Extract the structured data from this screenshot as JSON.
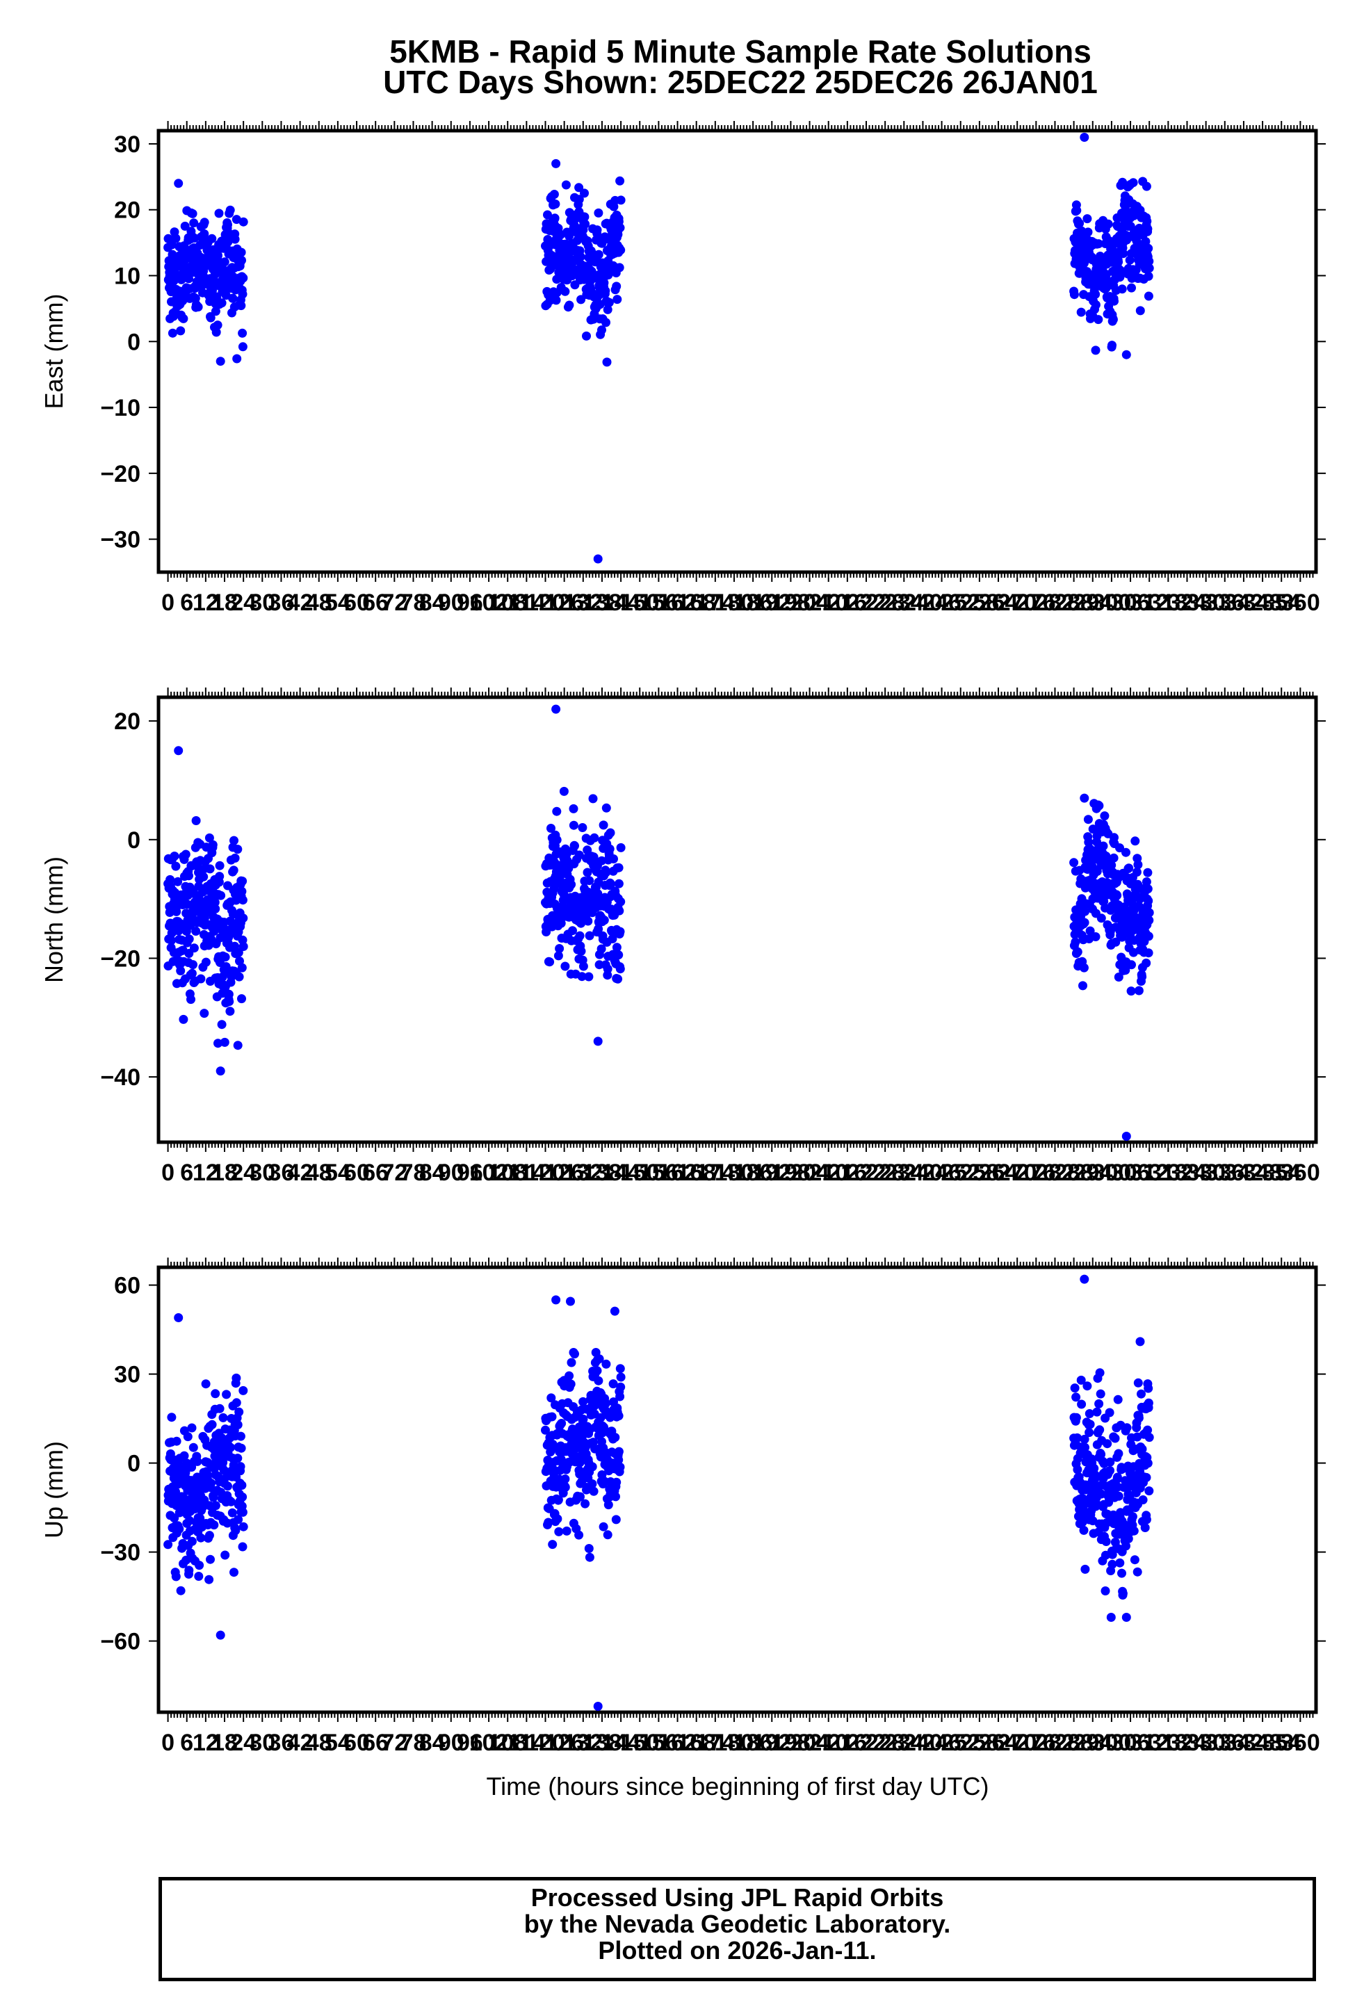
{
  "title": {
    "line1": "5KMB - Rapid 5 Minute Sample Rate Solutions",
    "line2": "UTC Days Shown:  25DEC22 25DEC26 26JAN01"
  },
  "xlabel": "Time (hours since beginning of first day UTC)",
  "footer": {
    "line1": "Processed Using JPL Rapid Orbits",
    "line2": "by the Nevada Geodetic Laboratory.",
    "line3": "Plotted on 2026-Jan-11."
  },
  "colors": {
    "points": "#0000ff",
    "axes": "#000000"
  },
  "chart_data": [
    {
      "type": "scatter",
      "ylabel": "East (mm)",
      "xlim": [
        -3,
        365
      ],
      "ylim": [
        -35,
        32
      ],
      "x_ticks": [
        0,
        6,
        12,
        18,
        24,
        30,
        36,
        42,
        48,
        54,
        60,
        66,
        72,
        78,
        84,
        90,
        96,
        102,
        108,
        114,
        120,
        126,
        132,
        138,
        144,
        150,
        156,
        162,
        168,
        174,
        180,
        186,
        192,
        198,
        204,
        210,
        216,
        222,
        228,
        234,
        240,
        246,
        252,
        258,
        264,
        270,
        276,
        282,
        288,
        294,
        300,
        306,
        312,
        318,
        324,
        330,
        336,
        342,
        348,
        354,
        360
      ],
      "x_tick_labels": [
        "0",
        "6",
        "12",
        "18",
        "24",
        "30",
        "36",
        "42",
        "48",
        "54",
        "60",
        "66",
        "72",
        "78",
        "84",
        "90",
        "96",
        "102",
        "108",
        "114",
        "120",
        "126",
        "132",
        "138",
        "144",
        "150",
        "156",
        "162",
        "168",
        "174",
        "180",
        "186",
        "192",
        "198",
        "204",
        "210",
        "216",
        "222",
        "228",
        "234",
        "240",
        "246",
        "252",
        "258",
        "264",
        "270",
        "276",
        "282",
        "288",
        "294",
        "300",
        "306",
        "312",
        "318",
        "324",
        "330",
        "336",
        "342",
        "348",
        "354",
        "360"
      ],
      "y_ticks": [
        -30,
        -20,
        -10,
        0,
        10,
        20,
        30
      ],
      "y_tick_labels": [
        "−30",
        "−20",
        "−10",
        "0",
        "10",
        "20",
        "30"
      ],
      "sessions": [
        {
          "x_range": [
            0,
            24
          ],
          "mean": 11,
          "sd": 4.8,
          "min": -3,
          "max": 24
        },
        {
          "x_range": [
            120,
            144
          ],
          "mean": 13,
          "sd": 5.0,
          "min": -33,
          "max": 27
        },
        {
          "x_range": [
            288,
            312
          ],
          "mean": 12,
          "sd": 5.5,
          "min": -2,
          "max": 31
        }
      ]
    },
    {
      "type": "scatter",
      "ylabel": "North (mm)",
      "xlim": [
        -3,
        365
      ],
      "ylim": [
        -51,
        24
      ],
      "x_ticks": [
        0,
        6,
        12,
        18,
        24,
        30,
        36,
        42,
        48,
        54,
        60,
        66,
        72,
        78,
        84,
        90,
        96,
        102,
        108,
        114,
        120,
        126,
        132,
        138,
        144,
        150,
        156,
        162,
        168,
        174,
        180,
        186,
        192,
        198,
        204,
        210,
        216,
        222,
        228,
        234,
        240,
        246,
        252,
        258,
        264,
        270,
        276,
        282,
        288,
        294,
        300,
        306,
        312,
        318,
        324,
        330,
        336,
        342,
        348,
        354,
        360
      ],
      "x_tick_labels": [
        "0",
        "6",
        "12",
        "18",
        "24",
        "30",
        "36",
        "42",
        "48",
        "54",
        "60",
        "66",
        "72",
        "78",
        "84",
        "90",
        "96",
        "102",
        "108",
        "114",
        "120",
        "126",
        "132",
        "138",
        "144",
        "150",
        "156",
        "162",
        "168",
        "174",
        "180",
        "186",
        "192",
        "198",
        "204",
        "210",
        "216",
        "222",
        "228",
        "234",
        "240",
        "246",
        "252",
        "258",
        "264",
        "270",
        "276",
        "282",
        "288",
        "294",
        "300",
        "306",
        "312",
        "318",
        "324",
        "330",
        "336",
        "342",
        "348",
        "354",
        "360"
      ],
      "y_ticks": [
        -40,
        -20,
        0,
        20
      ],
      "y_tick_labels": [
        "−40",
        "−20",
        "0",
        "20"
      ],
      "sessions": [
        {
          "x_range": [
            0,
            24
          ],
          "mean": -12,
          "sd": 8.0,
          "min": -39,
          "max": 15
        },
        {
          "x_range": [
            120,
            144
          ],
          "mean": -11,
          "sd": 7.5,
          "min": -34,
          "max": 22
        },
        {
          "x_range": [
            288,
            312
          ],
          "mean": -12,
          "sd": 7.0,
          "min": -50,
          "max": 7
        }
      ]
    },
    {
      "type": "scatter",
      "ylabel": "Up (mm)",
      "xlim": [
        -3,
        365
      ],
      "ylim": [
        -84,
        66
      ],
      "x_ticks": [
        0,
        6,
        12,
        18,
        24,
        30,
        36,
        42,
        48,
        54,
        60,
        66,
        72,
        78,
        84,
        90,
        96,
        102,
        108,
        114,
        120,
        126,
        132,
        138,
        144,
        150,
        156,
        162,
        168,
        174,
        180,
        186,
        192,
        198,
        204,
        210,
        216,
        222,
        228,
        234,
        240,
        246,
        252,
        258,
        264,
        270,
        276,
        282,
        288,
        294,
        300,
        306,
        312,
        318,
        324,
        330,
        336,
        342,
        348,
        354,
        360
      ],
      "x_tick_labels": [
        "0",
        "6",
        "12",
        "18",
        "24",
        "30",
        "36",
        "42",
        "48",
        "54",
        "60",
        "66",
        "72",
        "78",
        "84",
        "90",
        "96",
        "102",
        "108",
        "114",
        "120",
        "126",
        "132",
        "138",
        "144",
        "150",
        "156",
        "162",
        "168",
        "174",
        "180",
        "186",
        "192",
        "198",
        "204",
        "210",
        "216",
        "222",
        "228",
        "234",
        "240",
        "246",
        "252",
        "258",
        "264",
        "270",
        "276",
        "282",
        "288",
        "294",
        "300",
        "306",
        "312",
        "318",
        "324",
        "330",
        "336",
        "342",
        "348",
        "354",
        "360"
      ],
      "y_ticks": [
        -60,
        -30,
        0,
        30,
        60
      ],
      "y_tick_labels": [
        "−60",
        "−30",
        "0",
        "30",
        "60"
      ],
      "sessions": [
        {
          "x_range": [
            0,
            24
          ],
          "mean": -5,
          "sd": 16,
          "min": -58,
          "max": 49
        },
        {
          "x_range": [
            120,
            144
          ],
          "mean": 0,
          "sd": 17,
          "min": -82,
          "max": 55
        },
        {
          "x_range": [
            288,
            312
          ],
          "mean": -5,
          "sd": 18,
          "min": -52,
          "max": 62
        }
      ]
    }
  ]
}
